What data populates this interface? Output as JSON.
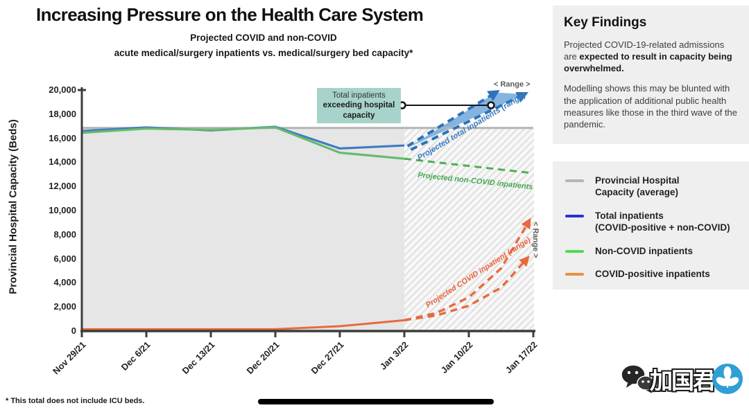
{
  "header": {
    "title": "Increasing Pressure on the Health Care System",
    "subtitle_line1": "Projected COVID and non-COVID",
    "subtitle_line2": "acute medical/surgery inpatients vs. medical/surgery bed capacity*"
  },
  "key_findings": {
    "heading": "Key Findings",
    "p1_normal": "Projected COVID-19-related admissions are ",
    "p1_bold": "expected to result in capacity being overwhelmed.",
    "p2": "Modelling shows this may be blunted with the application of additional public health measures like those in the third wave of the pandemic."
  },
  "legend": {
    "items": [
      {
        "label": "Provincial Hospital\nCapacity (average)",
        "color": "#b5b5b5"
      },
      {
        "label": "Total inpatients\n(COVID-positive + non-COVID)",
        "color": "#2832d1"
      },
      {
        "label": "Non-COVID inpatients",
        "color": "#55d855"
      },
      {
        "label": "COVID-positive inpatients",
        "color": "#e89140"
      }
    ]
  },
  "chart_data": {
    "type": "line",
    "ylabel": "Provincial Hospital Capacity (Beds)",
    "ylim": [
      0,
      20000
    ],
    "ytick_step": 2000,
    "categories": [
      "Nov 29/21",
      "Dec 6/21",
      "Dec 13/21",
      "Dec 20/21",
      "Dec 27/21",
      "Jan 3/22",
      "Jan 10/22",
      "Jan 17/22"
    ],
    "capacity_value": 16850,
    "series": [
      {
        "name": "Provincial Hospital Capacity (average)",
        "color": "#b4b4b4",
        "style": "solid",
        "width": 3,
        "x": [
          0,
          7
        ],
        "values": [
          16850,
          16850
        ]
      },
      {
        "name": "Total inpatients (COVID-positive + non-COVID)",
        "color": "#3d7dc1",
        "style": "solid",
        "width": 3.2,
        "x": [
          0,
          1,
          2,
          3,
          4,
          5
        ],
        "values": [
          16600,
          16900,
          16650,
          16950,
          15150,
          15400
        ]
      },
      {
        "name": "Non-COVID inpatients",
        "color": "#66bb6a",
        "style": "solid",
        "width": 3.2,
        "x": [
          0,
          1,
          2,
          3,
          4,
          5
        ],
        "values": [
          16450,
          16800,
          16700,
          16900,
          14800,
          14300
        ]
      },
      {
        "name": "COVID-positive inpatients",
        "color": "#e8693e",
        "style": "solid",
        "width": 3,
        "x": [
          0,
          1,
          2,
          3,
          4,
          5
        ],
        "values": [
          150,
          150,
          150,
          150,
          400,
          900
        ]
      },
      {
        "name": "Projected non-COVID inpatients",
        "color": "#4caf50",
        "style": "dashed",
        "width": 3,
        "x": [
          5,
          6,
          7
        ],
        "values": [
          14300,
          13700,
          13100
        ]
      },
      {
        "name": "Projected total inpatients (range) upper",
        "color": "#2f72b8",
        "style": "dashed",
        "width": 4,
        "arrow": "blue",
        "x": [
          5.05,
          6.42
        ],
        "values": [
          15350,
          19800
        ]
      },
      {
        "name": "Projected total inpatients (range) lower",
        "color": "#2f72b8",
        "style": "dashed",
        "width": 4,
        "arrow": "blue",
        "x": [
          5.1,
          6.86
        ],
        "values": [
          15050,
          19650
        ]
      },
      {
        "name": "Projected COVID inpatient (range) upper",
        "color": "#e8693e",
        "style": "dashed",
        "width": 3.4,
        "arrow": "orange",
        "x": [
          5,
          5.5,
          6,
          6.5,
          6.93
        ],
        "values": [
          900,
          1500,
          2800,
          5200,
          9100
        ]
      },
      {
        "name": "Projected COVID inpatient (range) lower",
        "color": "#e8693e",
        "style": "dashed",
        "width": 3.4,
        "arrow": "orange",
        "x": [
          5,
          5.5,
          6,
          6.5,
          6.9
        ],
        "values": [
          900,
          1300,
          2100,
          3600,
          6000
        ]
      }
    ],
    "band": {
      "name": "Projected total inpatients range band",
      "color": "#7db0dd",
      "x": [
        5.07,
        6.42,
        6.86
      ],
      "values": [
        15250,
        19800,
        19650
      ]
    },
    "regions": {
      "observed": {
        "x": [
          0,
          5
        ],
        "fill": "#e6e6e6"
      },
      "projected_hatched": {
        "x": [
          5,
          7
        ],
        "stripe": "#e0e0e0",
        "bg": "#f8f8f8"
      }
    }
  },
  "callout": {
    "line1": "Total inpatients",
    "line2": "exceeding hospital",
    "line3": "capacity"
  },
  "chart_labels": {
    "proj_total": "Projected total inpatients (range)",
    "proj_noncovid": "Projected non-COVID inpatients",
    "proj_covid": "Projected COVID inpatient (range)",
    "range_top": "< Range >",
    "range_right": "< Range >"
  },
  "footnote": "* This total does not include ICU beds.",
  "watermark": {
    "text": "加国君",
    "logo_color": "#2f9fd6"
  }
}
